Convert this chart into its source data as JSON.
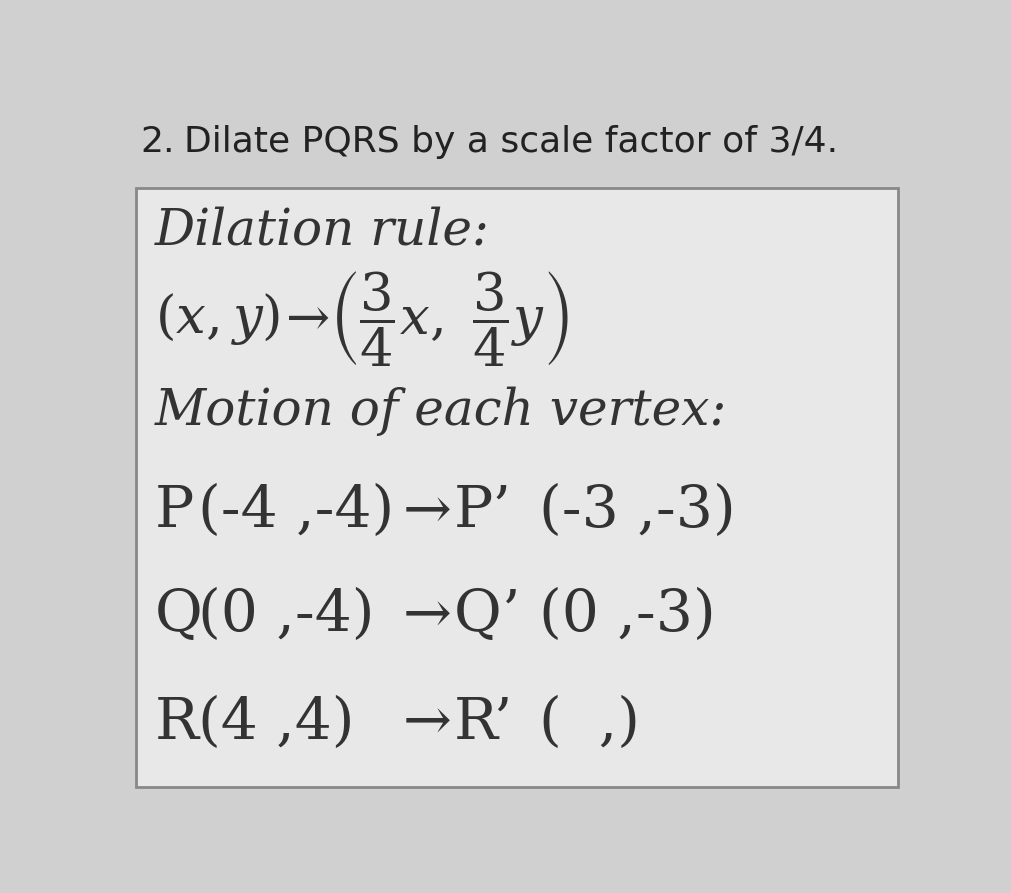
{
  "problem_number": "2.",
  "problem_text": "Dilate PQRS by a scale factor of 3/4.",
  "box_title": "Dilation rule:",
  "motion_label": "Motion of each vertex:",
  "vertices": [
    {
      "label": "P",
      "orig_open": "(",
      "orig_x": "-4",
      "orig_comma": " ,",
      "orig_y": "-4",
      "orig_close": ")",
      "prime_label": "P’",
      "res_open": "(",
      "res_x": "-3",
      "res_comma": " ,",
      "res_y": "-3",
      "res_close": ")"
    },
    {
      "label": "Q",
      "orig_open": "(",
      "orig_x": "0",
      "orig_comma": " ,",
      "orig_y": "-4",
      "orig_close": ")",
      "prime_label": "Q’",
      "res_open": "(",
      "res_x": "0",
      "res_comma": " ,",
      "res_y": "-3",
      "res_close": ")"
    },
    {
      "label": "R",
      "orig_open": "(",
      "orig_x": "4",
      "orig_comma": " ,",
      "orig_y": "4",
      "orig_close": ")",
      "prime_label": "R’",
      "res_open": "(",
      "res_x": "",
      "res_comma": "  ,",
      "res_y": "",
      "res_close": ")"
    }
  ],
  "bg_color": "#d0d0d0",
  "box_bg": "#e8e8e8",
  "box_edge": "#888888",
  "text_dark": "#222222",
  "text_handwritten": "#333333",
  "fig_width": 10.11,
  "fig_height": 8.93,
  "dpi": 100
}
